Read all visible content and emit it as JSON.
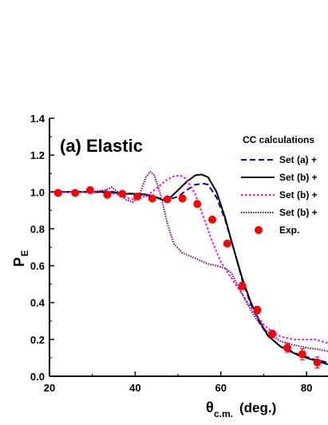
{
  "chart_data": {
    "type": "line",
    "panel_label": "(a) Elastic",
    "ylabel_main": "P",
    "ylabel_sub": "E",
    "xlabel_symbol": "θ",
    "xlabel_sub": "c.m.",
    "xlabel_unit": "(deg.)",
    "xlim": [
      20,
      85
    ],
    "ylim": [
      0.0,
      1.4
    ],
    "xticks": [
      20,
      40,
      60,
      80
    ],
    "yticks": [
      0.0,
      0.2,
      0.4,
      0.6,
      0.8,
      1.0,
      1.2,
      1.4
    ],
    "xtick_labels": [
      "20",
      "40",
      "60",
      "80"
    ],
    "ytick_labels": [
      "0.0",
      "0.2",
      "0.4",
      "0.6",
      "0.8",
      "1.0",
      "1.2",
      "1.4"
    ],
    "legend": {
      "title": "CC calculations",
      "placement": "top-right"
    },
    "series": [
      {
        "name": "Set (a) +",
        "style": "dashed",
        "color": "#0000ee",
        "points": [
          [
            20,
            1.0
          ],
          [
            30,
            1.0
          ],
          [
            36,
            0.995
          ],
          [
            40,
            0.99
          ],
          [
            44,
            0.975
          ],
          [
            46,
            0.965
          ],
          [
            48,
            0.96
          ],
          [
            50,
            0.975
          ],
          [
            52,
            1.01
          ],
          [
            54,
            1.04
          ],
          [
            56,
            1.045
          ],
          [
            57,
            1.04
          ],
          [
            59,
            0.97
          ],
          [
            61,
            0.85
          ],
          [
            63,
            0.69
          ],
          [
            65,
            0.52
          ],
          [
            67,
            0.39
          ],
          [
            69,
            0.29
          ],
          [
            71,
            0.22
          ],
          [
            74,
            0.16
          ],
          [
            78,
            0.12
          ],
          [
            82,
            0.09
          ],
          [
            85,
            0.075
          ]
        ]
      },
      {
        "name": "Set (b) +",
        "style": "solid",
        "color": "#000000",
        "points": [
          [
            20,
            1.0
          ],
          [
            30,
            1.0
          ],
          [
            35,
            1.0
          ],
          [
            37,
            0.99
          ],
          [
            39,
            0.99
          ],
          [
            41,
            0.99
          ],
          [
            43,
            0.985
          ],
          [
            45,
            0.97
          ],
          [
            46.5,
            0.955
          ],
          [
            48,
            0.965
          ],
          [
            50,
            1.01
          ],
          [
            52,
            1.055
          ],
          [
            54,
            1.09
          ],
          [
            55.5,
            1.095
          ],
          [
            57,
            1.08
          ],
          [
            59,
            1.0
          ],
          [
            61,
            0.86
          ],
          [
            63,
            0.69
          ],
          [
            65,
            0.53
          ],
          [
            67,
            0.4
          ],
          [
            69,
            0.3
          ],
          [
            71,
            0.22
          ],
          [
            74,
            0.16
          ],
          [
            78,
            0.115
          ],
          [
            82,
            0.085
          ],
          [
            85,
            0.065
          ]
        ]
      },
      {
        "name": "Set (b) +",
        "style": "dotted",
        "color": "#ff00ff",
        "points": [
          [
            20,
            1.0
          ],
          [
            30,
            1.0
          ],
          [
            33,
            1.01
          ],
          [
            35,
            0.99
          ],
          [
            37,
            0.98
          ],
          [
            39,
            0.96
          ],
          [
            41,
            0.965
          ],
          [
            43,
            0.985
          ],
          [
            45,
            1.02
          ],
          [
            47,
            1.06
          ],
          [
            49,
            1.085
          ],
          [
            50.5,
            1.09
          ],
          [
            52,
            1.07
          ],
          [
            54,
            0.99
          ],
          [
            56,
            0.86
          ],
          [
            58,
            0.73
          ],
          [
            60,
            0.62
          ],
          [
            62,
            0.55
          ],
          [
            64,
            0.48
          ],
          [
            66,
            0.41
          ],
          [
            68,
            0.34
          ],
          [
            70,
            0.28
          ],
          [
            72,
            0.24
          ],
          [
            74,
            0.215
          ],
          [
            77,
            0.2
          ],
          [
            80,
            0.2
          ],
          [
            82,
            0.2
          ],
          [
            85,
            0.18
          ]
        ]
      },
      {
        "name": "Set (b) +",
        "style": "densely-dotted",
        "color": "#800080",
        "points": [
          [
            20,
            1.0
          ],
          [
            30,
            1.0
          ],
          [
            33,
            1.01
          ],
          [
            34.5,
            1.025
          ],
          [
            36,
            1.0
          ],
          [
            38,
            0.955
          ],
          [
            39.5,
            0.945
          ],
          [
            41,
            0.985
          ],
          [
            42.5,
            1.08
          ],
          [
            43.5,
            1.11
          ],
          [
            44.5,
            1.09
          ],
          [
            46,
            0.98
          ],
          [
            47.5,
            0.83
          ],
          [
            49,
            0.72
          ],
          [
            51,
            0.67
          ],
          [
            53,
            0.65
          ],
          [
            55,
            0.63
          ],
          [
            57,
            0.61
          ],
          [
            59,
            0.6
          ],
          [
            61,
            0.585
          ],
          [
            62.5,
            0.56
          ],
          [
            64,
            0.49
          ],
          [
            66,
            0.4
          ],
          [
            68,
            0.32
          ],
          [
            70,
            0.26
          ],
          [
            72,
            0.22
          ],
          [
            74,
            0.19
          ],
          [
            77,
            0.17
          ],
          [
            80,
            0.155
          ],
          [
            83,
            0.145
          ],
          [
            85,
            0.135
          ]
        ]
      },
      {
        "name": "Exp.",
        "style": "markers",
        "color": "#ff0000",
        "points": [
          [
            22,
            0.995
          ],
          [
            26,
            0.995
          ],
          [
            29.5,
            1.01
          ],
          [
            33.5,
            0.985
          ],
          [
            37,
            0.99
          ],
          [
            40.5,
            0.975
          ],
          [
            44,
            0.965
          ],
          [
            47.5,
            0.96
          ],
          [
            51,
            0.965
          ],
          [
            54.5,
            0.935
          ],
          [
            58,
            0.85
          ],
          [
            61.5,
            0.72
          ],
          [
            65,
            0.49
          ],
          [
            68.5,
            0.36
          ],
          [
            72,
            0.23
          ],
          [
            75.5,
            0.155
          ],
          [
            79,
            0.12
          ],
          [
            82.5,
            0.075
          ]
        ],
        "errors": [
          0.01,
          0.01,
          0.01,
          0.01,
          0.01,
          0.01,
          0.01,
          0.01,
          0.01,
          0.01,
          0.01,
          0.01,
          0.02,
          0.02,
          0.02,
          0.025,
          0.03,
          0.03
        ]
      }
    ]
  }
}
